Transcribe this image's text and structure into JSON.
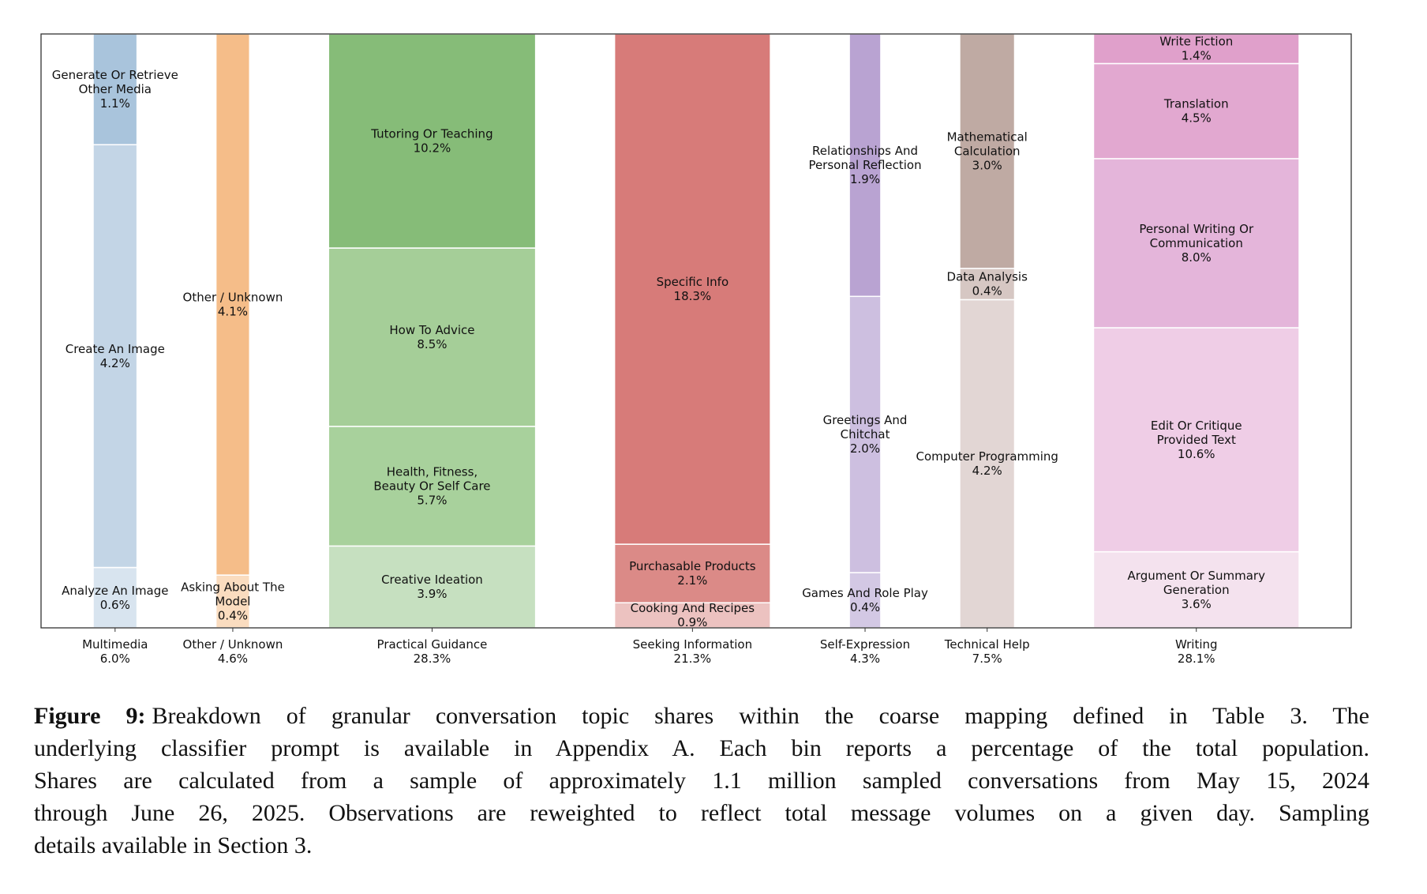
{
  "chart_data": {
    "type": "bar",
    "subtype": "variable-width stacked (marimekko), each bar normalized to full height, width proportional to category share",
    "categories": [
      "Multimedia",
      "Other / Unknown",
      "Practical Guidance",
      "Seeking Information",
      "Self-Expression",
      "Technical Help",
      "Writing"
    ],
    "category_shares": [
      "6.0%",
      "4.6%",
      "28.3%",
      "21.3%",
      "4.3%",
      "7.5%",
      "28.1%"
    ],
    "category_values": [
      6.0,
      4.6,
      28.3,
      21.3,
      4.3,
      7.5,
      28.1
    ],
    "stacks": [
      {
        "category": "Multimedia",
        "segments": [
          {
            "label": "Analyze An Image",
            "pct": "0.6%",
            "value": 0.6,
            "color": "#d8e4ef"
          },
          {
            "label": "Create An Image",
            "pct": "4.2%",
            "value": 4.2,
            "color": "#c3d5e6"
          },
          {
            "label": "Generate Or Retrieve\nOther Media",
            "pct": "1.1%",
            "value": 1.1,
            "color": "#a9c4dc"
          }
        ]
      },
      {
        "category": "Other / Unknown",
        "segments": [
          {
            "label": "Asking About The\nModel",
            "pct": "0.4%",
            "value": 0.4,
            "color": "#fadcbf"
          },
          {
            "label": "Other / Unknown",
            "pct": "4.1%",
            "value": 4.1,
            "color": "#f5bd89"
          }
        ]
      },
      {
        "category": "Practical Guidance",
        "segments": [
          {
            "label": "Creative Ideation",
            "pct": "3.9%",
            "value": 3.9,
            "color": "#c6e0c0"
          },
          {
            "label": "Health, Fitness,\nBeauty Or Self Care",
            "pct": "5.7%",
            "value": 5.7,
            "color": "#a8d19c"
          },
          {
            "label": "How To Advice",
            "pct": "8.5%",
            "value": 8.5,
            "color": "#a5ce98"
          },
          {
            "label": "Tutoring Or Teaching",
            "pct": "10.2%",
            "value": 10.2,
            "color": "#86bc78"
          }
        ]
      },
      {
        "category": "Seeking Information",
        "segments": [
          {
            "label": "Cooking And Recipes",
            "pct": "0.9%",
            "value": 0.9,
            "color": "#ecc2c0"
          },
          {
            "label": "Purchasable Products",
            "pct": "2.1%",
            "value": 2.1,
            "color": "#db8a87"
          },
          {
            "label": "Specific Info",
            "pct": "18.3%",
            "value": 18.3,
            "color": "#d77b79"
          }
        ]
      },
      {
        "category": "Self-Expression",
        "segments": [
          {
            "label": "Games And Role Play",
            "pct": "0.4%",
            "value": 0.4,
            "color": "#d3c8e4"
          },
          {
            "label": "Greetings And\nChitchat",
            "pct": "2.0%",
            "value": 2.0,
            "color": "#cdbfe0"
          },
          {
            "label": "Relationships And\nPersonal Reflection",
            "pct": "1.9%",
            "value": 1.9,
            "color": "#b9a3d2"
          }
        ]
      },
      {
        "category": "Technical Help",
        "segments": [
          {
            "label": "Computer Programming",
            "pct": "4.2%",
            "value": 4.2,
            "color": "#e2d6d4"
          },
          {
            "label": "Data Analysis",
            "pct": "0.4%",
            "value": 0.4,
            "color": "#d6c7c3"
          },
          {
            "label": "Mathematical\nCalculation",
            "pct": "3.0%",
            "value": 3.0,
            "color": "#bfaaa3"
          }
        ]
      },
      {
        "category": "Writing",
        "segments": [
          {
            "label": "Argument Or Summary\nGeneration",
            "pct": "3.6%",
            "value": 3.6,
            "color": "#f4e2ee"
          },
          {
            "label": "Edit Or Critique\nProvided Text",
            "pct": "10.6%",
            "value": 10.6,
            "color": "#efcde6"
          },
          {
            "label": "Personal Writing Or\nCommunication",
            "pct": "8.0%",
            "value": 8.0,
            "color": "#e4b5da"
          },
          {
            "label": "Translation",
            "pct": "4.5%",
            "value": 4.5,
            "color": "#e2a8d0"
          },
          {
            "label": "Write Fiction",
            "pct": "1.4%",
            "value": 1.4,
            "color": "#e0a0cb"
          }
        ]
      }
    ],
    "title": "",
    "xlabel": "",
    "ylabel": "",
    "grid": false,
    "legend": "none"
  },
  "caption": {
    "label": "Figure 9:",
    "lines": [
      "Breakdown of granular conversation topic shares within the coarse mapping defined in Table 3. The",
      "underlying classifier prompt is available in Appendix A. Each bin reports a percentage of the total population.",
      "Shares are calculated from a sample of approximately 1.1 million sampled conversations from May 15, 2024",
      "through June 26, 2025. Observations are reweighted to reflect total message volumes on a given day. Sampling",
      "details available in Section 3."
    ]
  }
}
